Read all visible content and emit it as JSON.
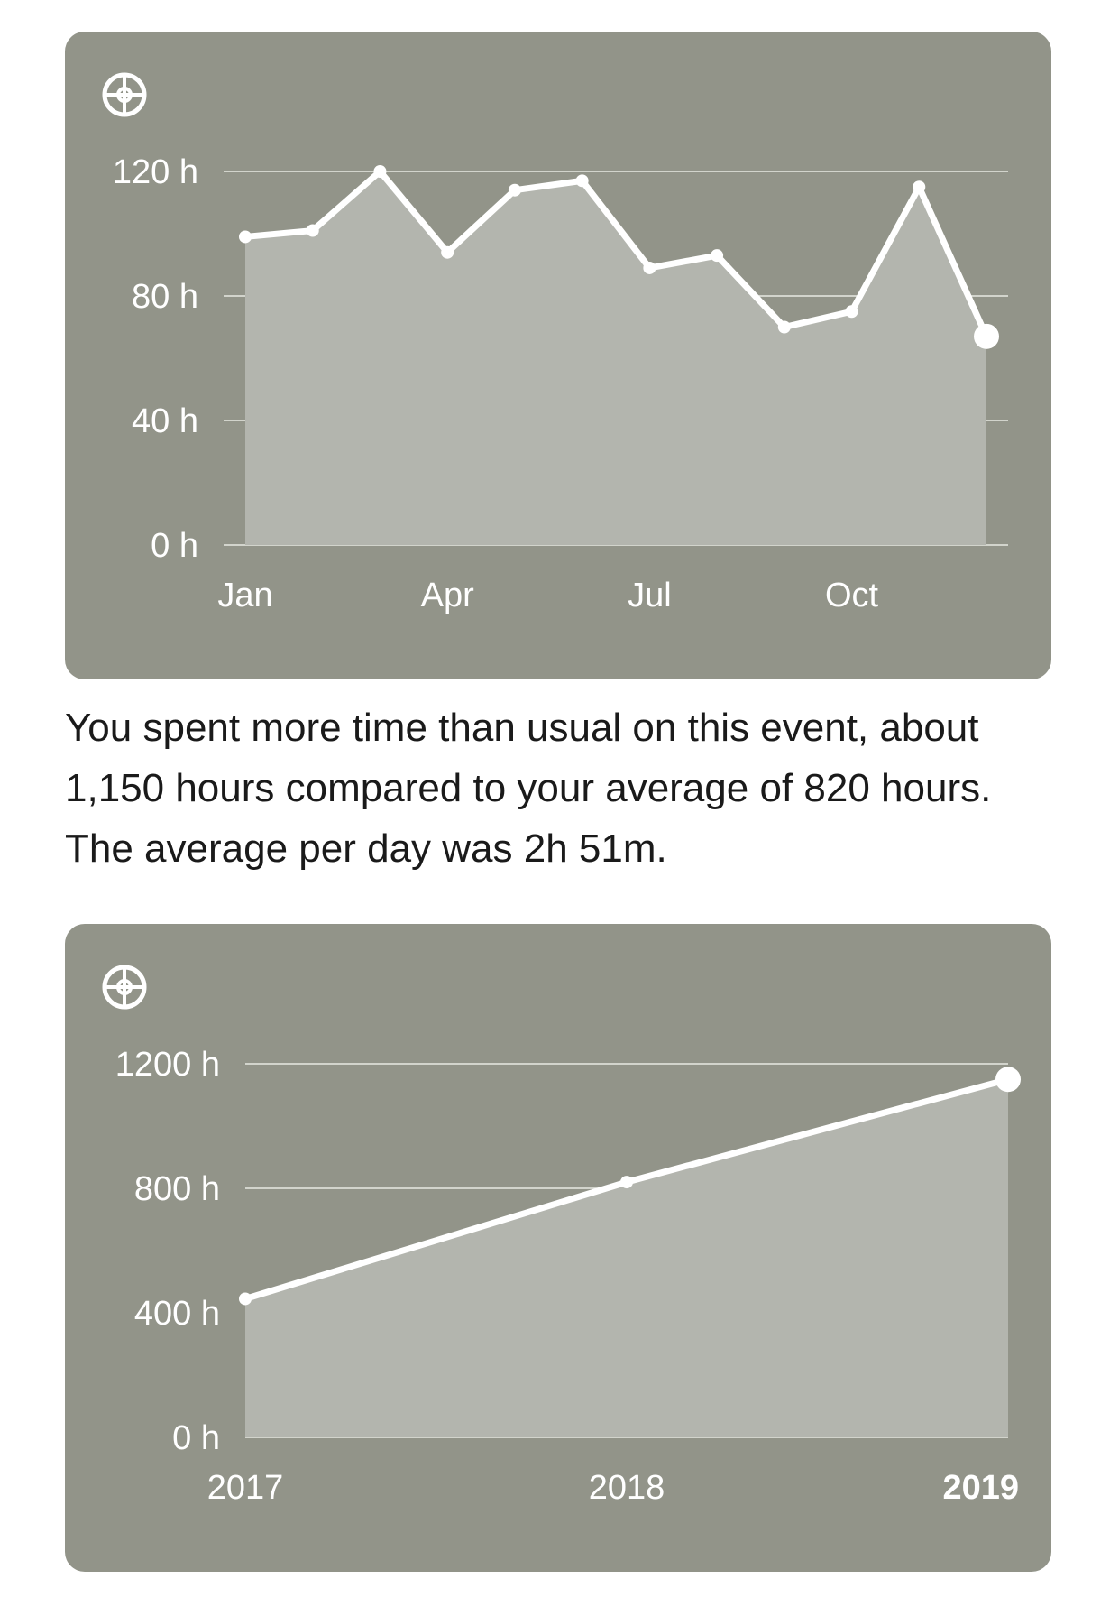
{
  "colors": {
    "card_bg": "#929489",
    "area_fill": "#b3b5ae",
    "line": "#ffffff",
    "grid": "#e8e9e3",
    "text": "#ffffff"
  },
  "icons": {
    "card_icon": "steering-wheel-icon"
  },
  "caption": "You spent more time than usual on this event, about 1,150 hours compared to your average of 820 hours. The average per day was 2h 51m.",
  "chart_data": [
    {
      "type": "area",
      "title": "",
      "xlabel": "",
      "ylabel": "",
      "ylim": [
        0,
        120
      ],
      "y_ticks": [
        0,
        40,
        80,
        120
      ],
      "y_tick_labels": [
        "0 h",
        "40 h",
        "80 h",
        "120 h"
      ],
      "x_tick_labels": [
        {
          "label": "Jan",
          "index": 0,
          "bold": false
        },
        {
          "label": "Apr",
          "index": 3,
          "bold": false
        },
        {
          "label": "Jul",
          "index": 6,
          "bold": false
        },
        {
          "label": "Oct",
          "index": 9,
          "bold": false
        }
      ],
      "grid": true,
      "legend": "none",
      "series": [
        {
          "values": [
            99,
            101,
            120,
            94,
            114,
            117,
            89,
            93,
            70,
            75,
            115,
            67
          ]
        }
      ]
    },
    {
      "type": "area",
      "title": "",
      "xlabel": "",
      "ylabel": "",
      "ylim": [
        0,
        1200
      ],
      "y_ticks": [
        0,
        400,
        800,
        1200
      ],
      "y_tick_labels": [
        "0 h",
        "400 h",
        "800 h",
        "1200 h"
      ],
      "x_tick_labels": [
        {
          "label": "2017",
          "index": 0,
          "bold": false
        },
        {
          "label": "2018",
          "index": 1,
          "bold": false
        },
        {
          "label": "2019",
          "index": 2,
          "bold": true
        }
      ],
      "grid": true,
      "legend": "none",
      "series": [
        {
          "values": [
            445,
            820,
            1150
          ]
        }
      ]
    }
  ]
}
